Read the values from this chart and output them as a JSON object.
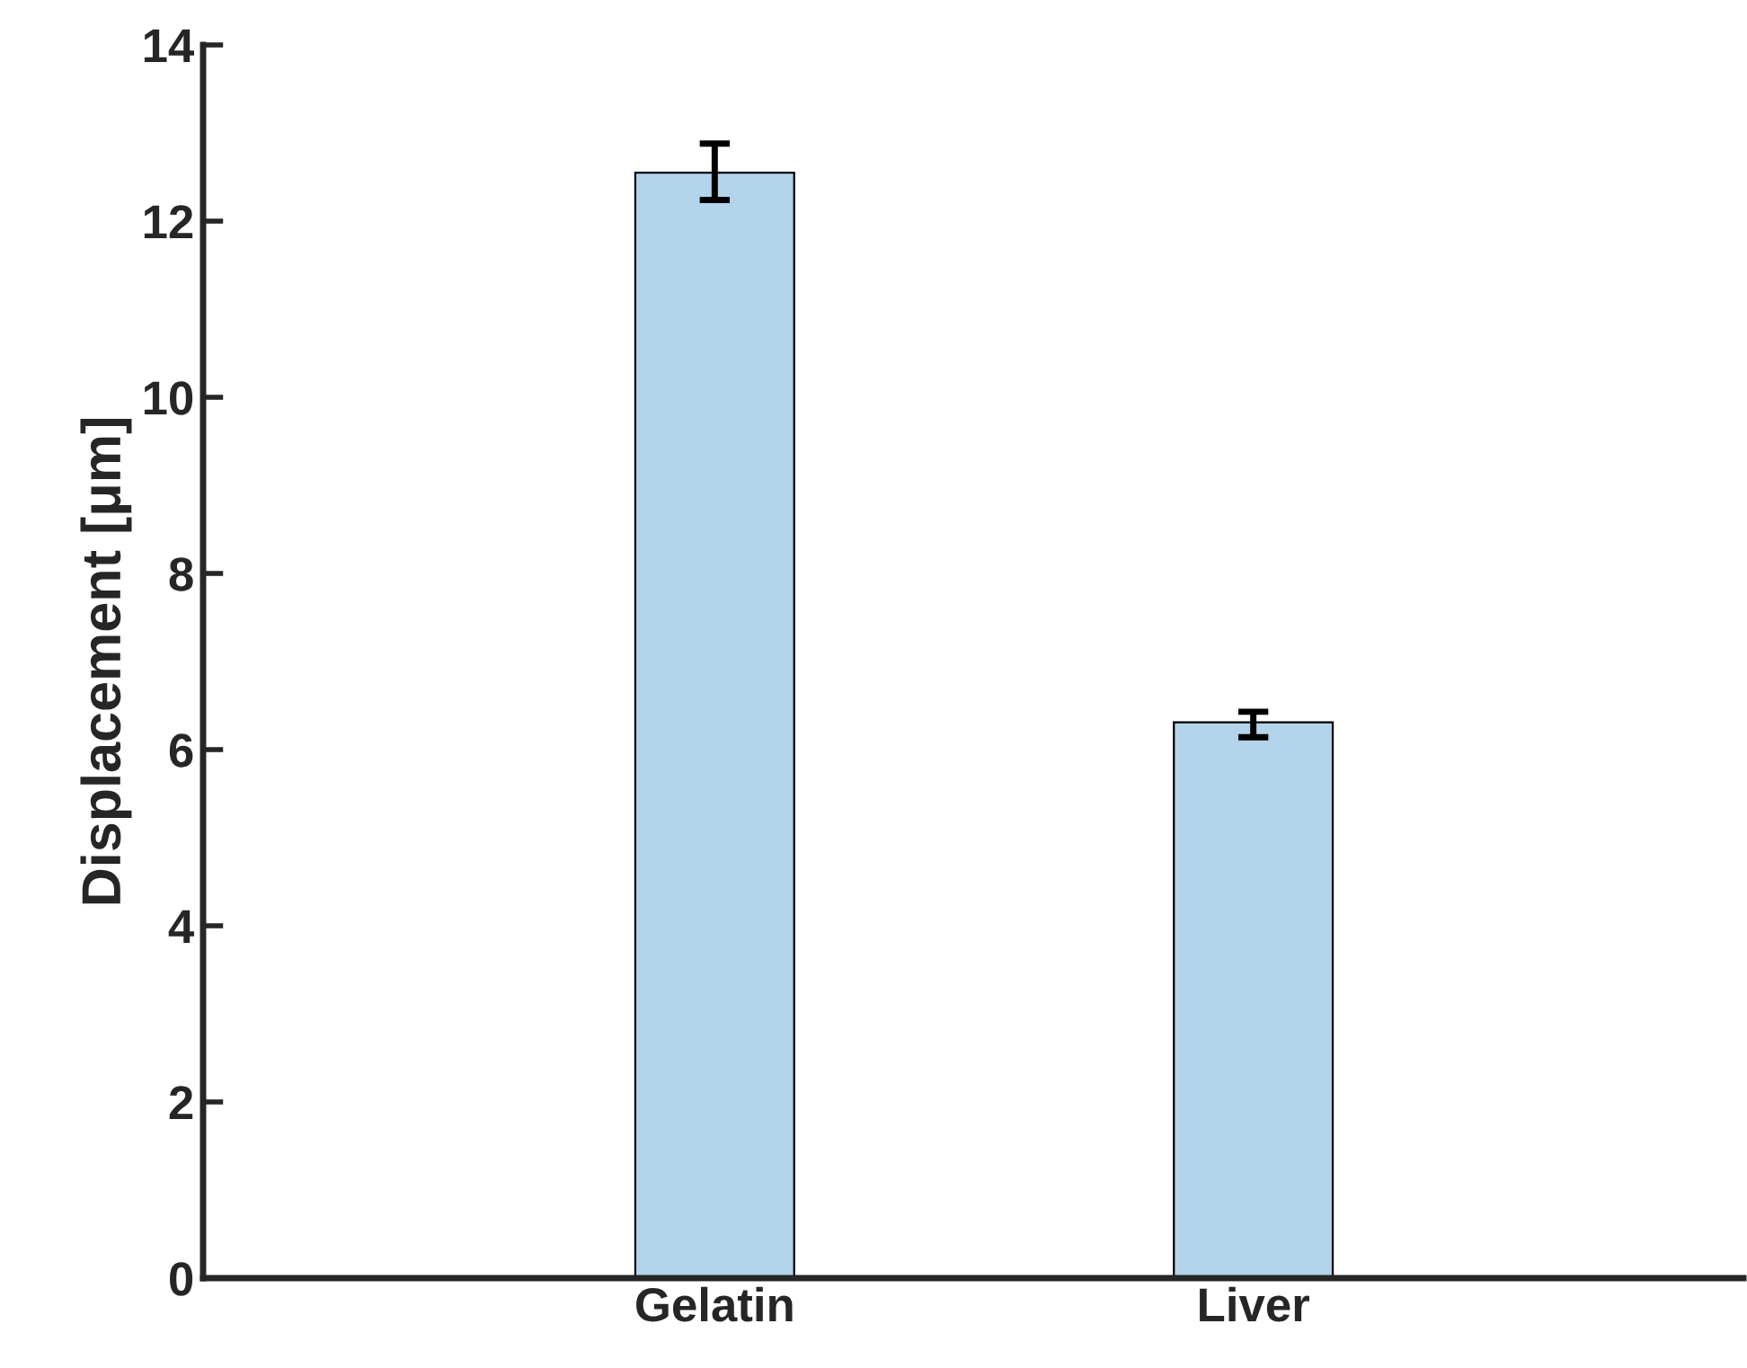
{
  "chart_data": {
    "type": "bar",
    "ylabel": "Displacement [μm]",
    "categories": [
      "Gelatin",
      "Liver"
    ],
    "values": [
      12.55,
      6.31
    ],
    "errors": [
      [
        12.24,
        12.88
      ],
      [
        6.14,
        6.43
      ]
    ],
    "color": "#b3d4ea",
    "ylim": [
      0,
      14
    ],
    "yticks": [
      0,
      2,
      4,
      6,
      8,
      10,
      12,
      14
    ],
    "grid": false,
    "legend": false
  }
}
